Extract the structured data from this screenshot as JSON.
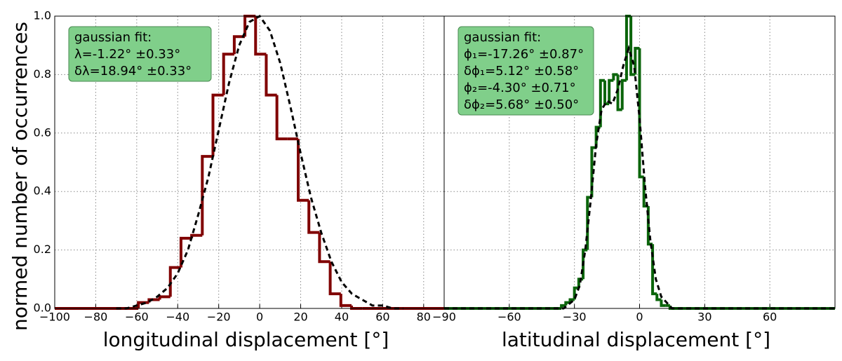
{
  "chart_data": [
    {
      "type": "histogram",
      "ylabel": "normed number of occurrences",
      "xlabel": "longitudinal displacement [°]",
      "bins": [
        -59.2,
        -54,
        -48.8,
        -43.6,
        -38.4,
        -33.2,
        -28,
        -22.8,
        -17.6,
        -12.4,
        -7.2,
        -2,
        3.2,
        8.4,
        13.6,
        18.8,
        24,
        29.2,
        34.4,
        39.6,
        44.8,
        50
      ],
      "values": [
        0.02,
        0.03,
        0.04,
        0.14,
        0.24,
        0.25,
        0.52,
        0.73,
        0.87,
        0.93,
        1.0,
        0.87,
        0.73,
        0.58,
        0.58,
        0.37,
        0.26,
        0.16,
        0.05,
        0.01,
        0.0
      ],
      "color": "#800000",
      "fit": {
        "x": [
          -70,
          -65,
          -60,
          -55,
          -50,
          -45,
          -40,
          -35,
          -30,
          -25,
          -20,
          -15,
          -10,
          -5,
          0,
          5,
          10,
          15,
          20,
          25,
          30,
          35,
          40,
          45,
          50,
          55,
          60,
          65,
          70
        ],
        "values": [
          0,
          0,
          0.01,
          0.02,
          0.04,
          0.07,
          0.12,
          0.2,
          0.32,
          0.45,
          0.61,
          0.77,
          0.9,
          0.98,
          1.0,
          0.95,
          0.84,
          0.69,
          0.53,
          0.38,
          0.26,
          0.16,
          0.09,
          0.05,
          0.03,
          0.01,
          0.01,
          0,
          0
        ]
      },
      "annotation": [
        "gaussian fit:",
        "λ=-1.22° ±0.33°",
        "δλ=18.94° ±0.33°"
      ],
      "xlim": [
        -100,
        90
      ],
      "ylim": [
        0,
        1
      ],
      "xticks": [
        {
          "value": -100,
          "label": "−100"
        },
        {
          "value": -80,
          "label": "−80"
        },
        {
          "value": -60,
          "label": "−60"
        },
        {
          "value": -40,
          "label": "−40"
        },
        {
          "value": -20,
          "label": "−20"
        },
        0,
        20,
        40,
        60,
        80
      ],
      "yticks": [
        {
          "value": 0,
          "label": "0.0"
        },
        0.2,
        0.4,
        0.6,
        0.8,
        {
          "value": 1,
          "label": "1.0"
        }
      ],
      "grid": true
    },
    {
      "type": "histogram",
      "xlabel": "latitudinal displacement [°]",
      "bins": [
        -36,
        -34,
        -32,
        -30,
        -28,
        -26,
        -24,
        -22,
        -20,
        -18,
        -16,
        -14,
        -12,
        -10,
        -8,
        -6,
        -4,
        -2,
        0,
        2,
        4,
        6,
        8,
        10,
        12,
        14,
        16,
        18
      ],
      "values": [
        0.01,
        0.02,
        0.03,
        0.07,
        0.1,
        0.2,
        0.38,
        0.55,
        0.62,
        0.78,
        0.7,
        0.78,
        0.8,
        0.68,
        0.78,
        1.0,
        0.8,
        0.89,
        0.45,
        0.35,
        0.22,
        0.05,
        0.03,
        0.01,
        0.01,
        0.0,
        0.0
      ],
      "color": "#0b650b",
      "fit": {
        "x": [
          -90,
          -40,
          -35,
          -30,
          -27.5,
          -25,
          -22.5,
          -20,
          -17.5,
          -15,
          -12.5,
          -10,
          -7.5,
          -5,
          -2.5,
          0,
          2.5,
          5,
          7.5,
          10,
          15,
          20,
          90
        ],
        "values": [
          0,
          0,
          0,
          0.03,
          0.08,
          0.2,
          0.37,
          0.56,
          0.68,
          0.71,
          0.7,
          0.75,
          0.83,
          0.89,
          0.83,
          0.65,
          0.42,
          0.23,
          0.1,
          0.04,
          0,
          0,
          0
        ]
      },
      "annotation": [
        "gaussian fit:",
        "ϕ₁=-17.26° ±0.87°",
        "δϕ₁=5.12° ±0.58°",
        "ϕ₂=-4.30° ±0.71°",
        "δϕ₂=5.68° ±0.50°"
      ],
      "xlim": [
        -90,
        90
      ],
      "ylim": [
        0,
        1
      ],
      "xticks": [
        {
          "value": -90,
          "label": "−90"
        },
        {
          "value": -60,
          "label": "−60"
        },
        {
          "value": -30,
          "label": "−30"
        },
        0,
        30,
        60
      ],
      "sharey": true,
      "grid": true
    }
  ]
}
